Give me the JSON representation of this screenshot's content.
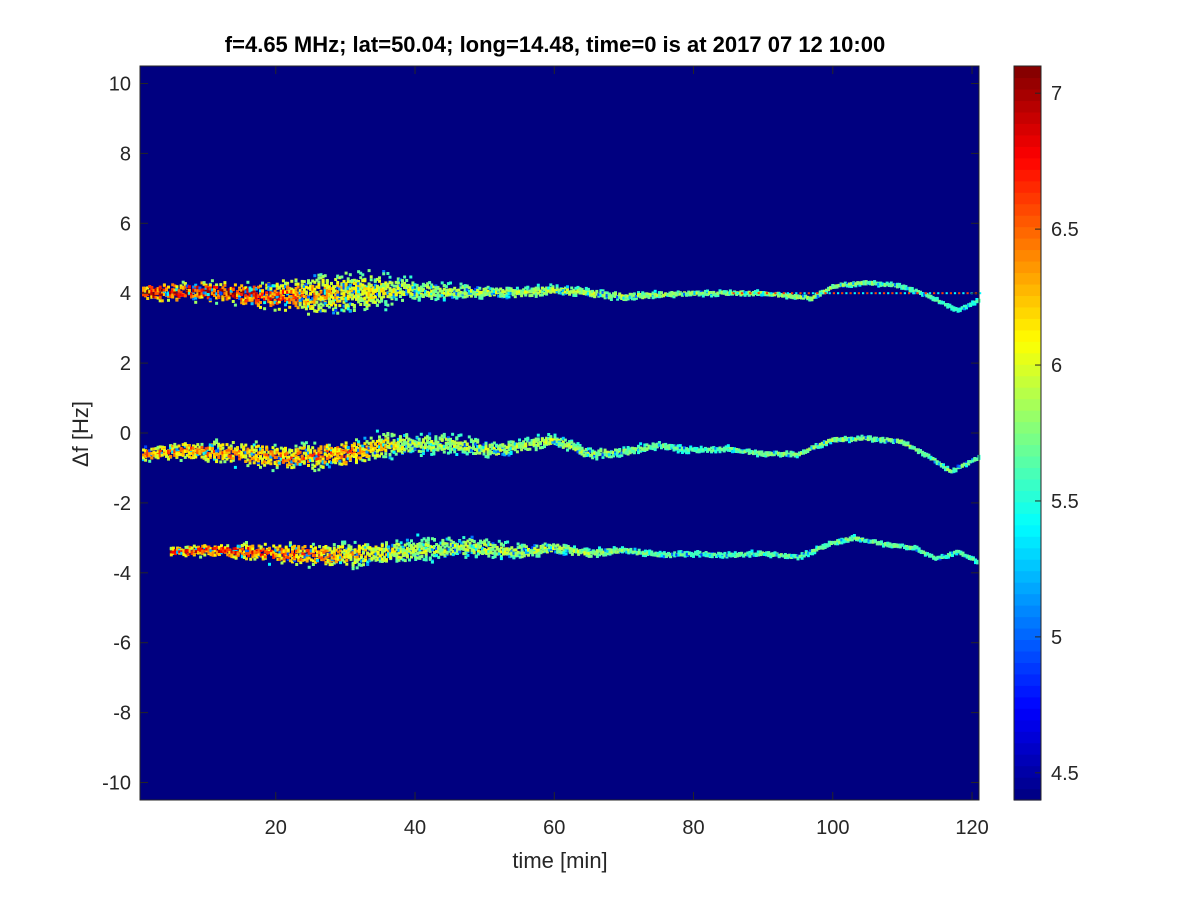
{
  "chart_data": {
    "type": "heatmap",
    "title": "f=4.65 MHz;  lat=50.04; long=14.48, time=0 is at 2017 07 12 10:00",
    "xlabel": "time [min]",
    "ylabel": "Δf [Hz]",
    "xlim": [
      0.5,
      121
    ],
    "ylim": [
      -10.5,
      10.5
    ],
    "xticks": [
      20,
      40,
      60,
      80,
      100,
      120
    ],
    "yticks": [
      10,
      8,
      6,
      4,
      2,
      0,
      -2,
      -4,
      -6,
      -8,
      -10
    ],
    "colorbar": {
      "colormap": "jet",
      "clim": [
        4.4,
        7.1
      ],
      "ticks": [
        7,
        6.5,
        6,
        5.5,
        5,
        4.5
      ]
    },
    "background_value": 4.4,
    "carrier_line": {
      "frequency_hz": 4.0,
      "x_start_min": 85,
      "x_end_min": 121
    },
    "traces": [
      {
        "name": "",
        "points": [
          [
            1,
            4.0
          ],
          [
            10,
            4.05
          ],
          [
            20,
            3.9
          ],
          [
            30,
            4.0
          ],
          [
            35,
            4.1
          ],
          [
            45,
            4.05
          ],
          [
            55,
            4.0
          ],
          [
            60,
            4.1
          ],
          [
            70,
            3.9
          ],
          [
            80,
            4.0
          ],
          [
            90,
            4.0
          ],
          [
            97,
            3.85
          ],
          [
            100,
            4.2
          ],
          [
            105,
            4.3
          ],
          [
            110,
            4.2
          ],
          [
            114,
            3.9
          ],
          [
            118,
            3.5
          ],
          [
            121,
            3.8
          ]
        ],
        "spread": [
          [
            1,
            0.35
          ],
          [
            15,
            0.4
          ],
          [
            25,
            0.8
          ],
          [
            33,
            0.85
          ],
          [
            40,
            0.4
          ],
          [
            50,
            0.25
          ],
          [
            60,
            0.2
          ],
          [
            80,
            0.1
          ],
          [
            121,
            0.08
          ]
        ],
        "intensity": [
          [
            1,
            7.0
          ],
          [
            15,
            7.0
          ],
          [
            25,
            6.4
          ],
          [
            40,
            6.0
          ],
          [
            60,
            6.0
          ],
          [
            80,
            5.9
          ],
          [
            100,
            5.9
          ],
          [
            121,
            5.6
          ]
        ]
      },
      {
        "name": "",
        "points": [
          [
            1,
            -0.6
          ],
          [
            8,
            -0.5
          ],
          [
            15,
            -0.6
          ],
          [
            22,
            -0.7
          ],
          [
            30,
            -0.6
          ],
          [
            36,
            -0.35
          ],
          [
            45,
            -0.3
          ],
          [
            52,
            -0.5
          ],
          [
            60,
            -0.2
          ],
          [
            65,
            -0.6
          ],
          [
            70,
            -0.55
          ],
          [
            75,
            -0.35
          ],
          [
            80,
            -0.5
          ],
          [
            85,
            -0.45
          ],
          [
            90,
            -0.6
          ],
          [
            95,
            -0.6
          ],
          [
            100,
            -0.2
          ],
          [
            105,
            -0.15
          ],
          [
            110,
            -0.25
          ],
          [
            114,
            -0.7
          ],
          [
            117,
            -1.1
          ],
          [
            119,
            -0.9
          ],
          [
            121,
            -0.7
          ]
        ],
        "spread": [
          [
            1,
            0.3
          ],
          [
            15,
            0.45
          ],
          [
            30,
            0.55
          ],
          [
            40,
            0.45
          ],
          [
            50,
            0.35
          ],
          [
            60,
            0.25
          ],
          [
            80,
            0.12
          ],
          [
            121,
            0.08
          ]
        ],
        "intensity": [
          [
            1,
            6.6
          ],
          [
            15,
            6.5
          ],
          [
            30,
            6.6
          ],
          [
            40,
            6.0
          ],
          [
            60,
            6.0
          ],
          [
            80,
            5.7
          ],
          [
            100,
            5.9
          ],
          [
            121,
            5.8
          ]
        ]
      },
      {
        "name": "",
        "points": [
          [
            5,
            -3.4
          ],
          [
            12,
            -3.35
          ],
          [
            20,
            -3.45
          ],
          [
            30,
            -3.5
          ],
          [
            40,
            -3.35
          ],
          [
            48,
            -3.25
          ],
          [
            55,
            -3.4
          ],
          [
            60,
            -3.3
          ],
          [
            65,
            -3.45
          ],
          [
            70,
            -3.35
          ],
          [
            75,
            -3.5
          ],
          [
            80,
            -3.45
          ],
          [
            85,
            -3.5
          ],
          [
            90,
            -3.45
          ],
          [
            95,
            -3.55
          ],
          [
            100,
            -3.15
          ],
          [
            103,
            -3.0
          ],
          [
            108,
            -3.2
          ],
          [
            112,
            -3.3
          ],
          [
            115,
            -3.6
          ],
          [
            118,
            -3.4
          ],
          [
            121,
            -3.7
          ]
        ],
        "spread": [
          [
            5,
            0.2
          ],
          [
            15,
            0.3
          ],
          [
            30,
            0.5
          ],
          [
            45,
            0.45
          ],
          [
            55,
            0.3
          ],
          [
            70,
            0.12
          ],
          [
            121,
            0.08
          ]
        ],
        "intensity": [
          [
            5,
            6.8
          ],
          [
            15,
            6.8
          ],
          [
            25,
            6.6
          ],
          [
            40,
            6.0
          ],
          [
            60,
            6.0
          ],
          [
            80,
            5.7
          ],
          [
            100,
            5.8
          ],
          [
            121,
            5.7
          ]
        ]
      }
    ]
  }
}
